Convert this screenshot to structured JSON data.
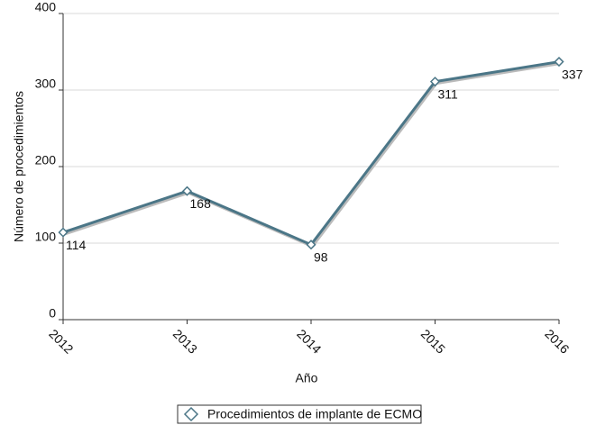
{
  "chart_data": {
    "type": "line",
    "x_label": "Año",
    "y_label": "Número de procedimientos",
    "categories": [
      "2012",
      "2013",
      "2014",
      "2015",
      "2016"
    ],
    "series": [
      {
        "name": "Procedimientos de implante de ECMO",
        "color": "#4b7687",
        "values": [
          114,
          168,
          98,
          311,
          337
        ]
      }
    ],
    "ylim": [
      0,
      400
    ],
    "yticks": [
      0,
      100,
      200,
      300,
      400
    ],
    "grid": true,
    "legend": "bottom"
  }
}
